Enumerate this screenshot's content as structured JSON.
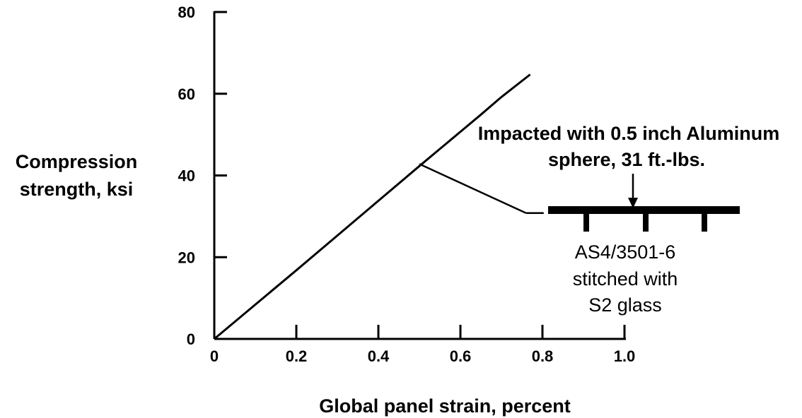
{
  "chart_data": {
    "type": "line",
    "xlabel": "Global panel strain, percent",
    "ylabel_lines": [
      "Compression",
      "strength, ksi"
    ],
    "xlim": [
      0,
      1.0
    ],
    "ylim": [
      0,
      80
    ],
    "x_ticks": [
      {
        "value": 0,
        "label": "0"
      },
      {
        "value": 0.2,
        "label": "0.2"
      },
      {
        "value": 0.4,
        "label": "0.4"
      },
      {
        "value": 0.6,
        "label": "0.6"
      },
      {
        "value": 0.8,
        "label": "0.8"
      },
      {
        "value": 1.0,
        "label": "1.0"
      }
    ],
    "y_ticks": [
      {
        "value": 0,
        "label": "0"
      },
      {
        "value": 20,
        "label": "20"
      },
      {
        "value": 40,
        "label": "40"
      },
      {
        "value": 60,
        "label": "60"
      },
      {
        "value": 80,
        "label": "80"
      }
    ],
    "grid": false,
    "legend": "none",
    "series": [
      {
        "x": [
          0,
          0.1,
          0.2,
          0.3,
          0.4,
          0.5,
          0.55,
          0.6,
          0.65,
          0.7,
          0.77
        ],
        "y": [
          0,
          8.4,
          16.8,
          25.3,
          33.8,
          42.3,
          46.5,
          50.7,
          54.9,
          59.2,
          64.7
        ]
      }
    ],
    "annotation": {
      "leader_start": {
        "x": 0.5,
        "y": 42.8
      },
      "leader_end": {
        "x": 0.76,
        "y": 30.8
      },
      "impact_lines": [
        "Impacted with 0.5 inch Aluminum",
        "sphere, 31 ft.-lbs."
      ],
      "material_lines": [
        "AS4/3501-6",
        "stitched with",
        "S2 glass"
      ]
    }
  }
}
